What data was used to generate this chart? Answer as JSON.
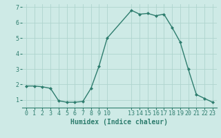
{
  "x": [
    0,
    1,
    2,
    3,
    4,
    5,
    6,
    7,
    8,
    9,
    10,
    13,
    14,
    15,
    16,
    17,
    18,
    19,
    20,
    21,
    22,
    23
  ],
  "y": [
    1.9,
    1.9,
    1.85,
    1.75,
    0.95,
    0.85,
    0.85,
    0.9,
    1.75,
    3.2,
    5.0,
    6.8,
    6.55,
    6.6,
    6.45,
    6.55,
    5.7,
    4.75,
    3.0,
    1.35,
    1.1,
    0.85
  ],
  "line_color": "#2e7d6e",
  "marker": "D",
  "marker_size": 2.0,
  "bg_color": "#ceeae6",
  "grid_color": "#aed4ce",
  "xlabel": "Humidex (Indice chaleur)",
  "ylim": [
    0.5,
    7.2
  ],
  "xlim": [
    -0.5,
    23.5
  ],
  "xticks": [
    0,
    1,
    2,
    3,
    4,
    5,
    6,
    7,
    8,
    9,
    10,
    13,
    14,
    15,
    16,
    17,
    18,
    19,
    20,
    21,
    22,
    23
  ],
  "yticks": [
    1,
    2,
    3,
    4,
    5,
    6,
    7
  ],
  "tick_color": "#2e7d6e",
  "label_color": "#2e7d6e",
  "font_size": 6.0,
  "xlabel_fontsize": 7.0,
  "linewidth": 1.0
}
